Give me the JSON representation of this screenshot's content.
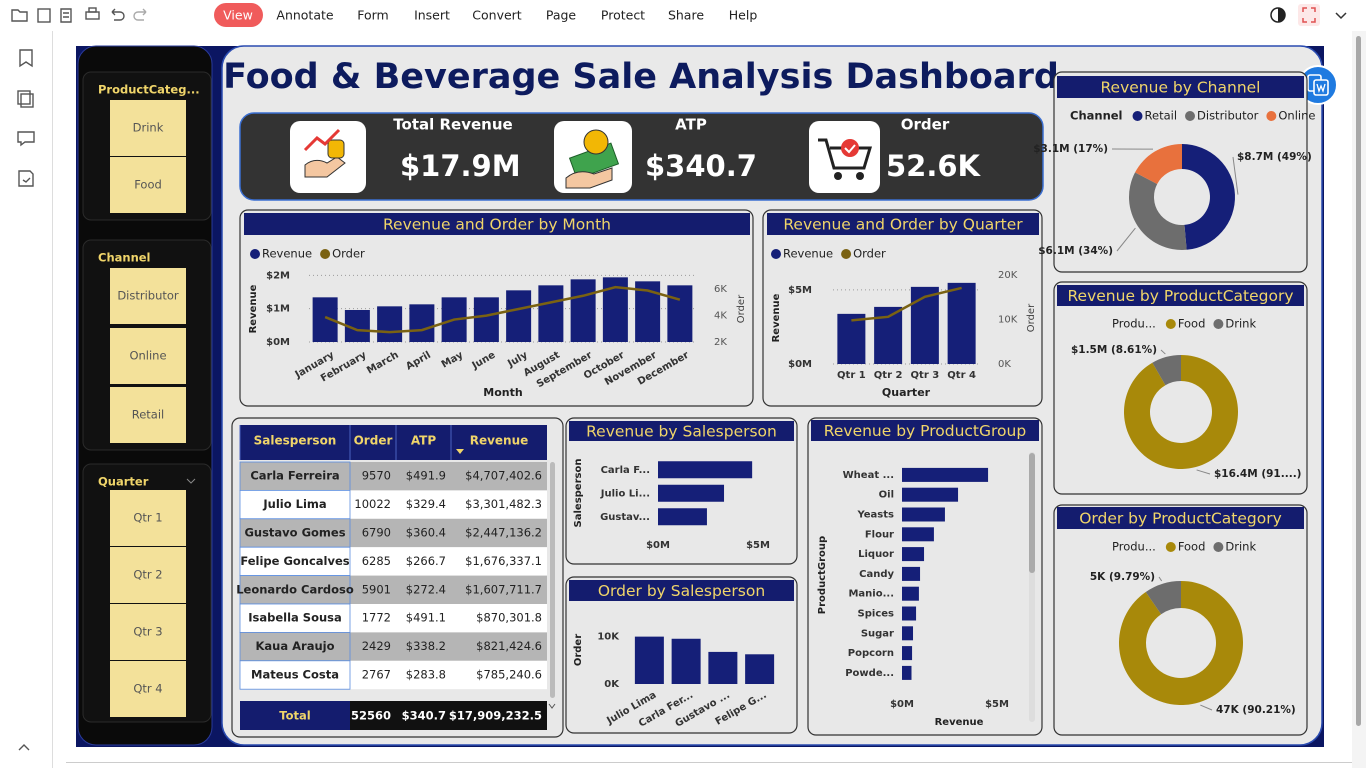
{
  "toolbar": {
    "menu": [
      "View",
      "Annotate",
      "Form",
      "Insert",
      "Convert",
      "Page",
      "Protect",
      "Share",
      "Help"
    ]
  },
  "dashboard": {
    "title": "Food & Beverage Sale Analysis Dashboard",
    "slicers": [
      {
        "title": "ProductCateg...",
        "items": [
          "Drink",
          "Food"
        ]
      },
      {
        "title": "Channel",
        "items": [
          "Distributor",
          "Online",
          "Retail"
        ]
      },
      {
        "title": "Quarter",
        "items": [
          "Qtr 1",
          "Qtr 2",
          "Qtr 3",
          "Qtr 4"
        ]
      }
    ],
    "kpis": [
      {
        "label": "Total Revenue",
        "value": "$17.9M"
      },
      {
        "label": "ATP",
        "value": "$340.7"
      },
      {
        "label": "Order",
        "value": "52.6K"
      }
    ],
    "month_chart": {
      "type": "combo",
      "title": "Revenue and Order by Month",
      "x_label": "Month",
      "y_label": "Revenue",
      "y2_label": "Order",
      "categories": [
        "January",
        "February",
        "March",
        "April",
        "May",
        "June",
        "July",
        "August",
        "September",
        "October",
        "November",
        "December"
      ],
      "series": [
        {
          "name": "Revenue",
          "type": "bar",
          "color": "#151f78",
          "values": [
            1340000,
            960000,
            1070000,
            1130000,
            1340000,
            1340000,
            1550000,
            1700000,
            1880000,
            1940000,
            1820000,
            1700000
          ]
        },
        {
          "name": "Order",
          "type": "line",
          "axis": "y2",
          "color": "#7a6212",
          "values": [
            3890,
            2900,
            2750,
            2900,
            3700,
            4000,
            4500,
            5000,
            5500,
            6150,
            5900,
            5200
          ]
        }
      ],
      "ylim": [
        0,
        2100000
      ],
      "yticks": [
        {
          "value": 0,
          "label": "$0M"
        },
        {
          "value": 1000000,
          "label": "$1M"
        },
        {
          "value": 2000000,
          "label": "$2M"
        }
      ],
      "y2lim": [
        2000,
        7300
      ],
      "y2ticks": [
        {
          "value": 2000,
          "label": "2K"
        },
        {
          "value": 4000,
          "label": "4K"
        },
        {
          "value": 6000,
          "label": "6K"
        }
      ],
      "grid": true
    },
    "quarter_chart": {
      "type": "combo",
      "title": "Revenue and Order by Quarter",
      "x_label": "Quarter",
      "y_label": "Revenue",
      "y2_label": "Order",
      "categories": [
        "Qtr 1",
        "Qtr 2",
        "Qtr 3",
        "Qtr 4"
      ],
      "series": [
        {
          "name": "Revenue",
          "type": "bar",
          "color": "#151f78",
          "values": [
            3380000,
            3850000,
            5200000,
            5470000
          ]
        },
        {
          "name": "Order",
          "type": "line",
          "axis": "y2",
          "color": "#7a6212",
          "values": [
            9800,
            10600,
            15100,
            17100
          ]
        }
      ],
      "ylim": [
        0,
        6000000
      ],
      "yticks": [
        {
          "value": 0,
          "label": "$0M"
        },
        {
          "value": 5000000,
          "label": "$5M"
        }
      ],
      "y2lim": [
        0,
        20000
      ],
      "y2ticks": [
        {
          "value": 0,
          "label": "0K"
        },
        {
          "value": 10000,
          "label": "10K"
        },
        {
          "value": 20000,
          "label": "20K"
        }
      ],
      "grid": true
    },
    "channel_chart": {
      "type": "donut",
      "title": "Revenue by Channel",
      "legend_title": "Channel",
      "categories": [
        "Retail",
        "Distributor",
        "Online"
      ],
      "values": [
        8700000,
        6100000,
        3100000
      ],
      "value_labels": [
        "$8.7M (49%)",
        "$6.1M (34%)",
        "$3.1M (17%)"
      ],
      "colors": [
        "#151f78",
        "#6d6d6d",
        "#e8713d"
      ]
    },
    "category_revenue_chart": {
      "type": "donut",
      "title": "Revenue by ProductCategory",
      "legend_title": "Produ...",
      "categories": [
        "Food",
        "Drink"
      ],
      "values": [
        16400000,
        1500000
      ],
      "value_labels": [
        "$16.4M (91....)",
        "$1.5M (8.61%)"
      ],
      "colors": [
        "#a8890a",
        "#6d6d6d"
      ]
    },
    "category_order_chart": {
      "type": "donut",
      "title": "Order by ProductCategory",
      "legend_title": "Produ...",
      "categories": [
        "Food",
        "Drink"
      ],
      "values": [
        47000,
        5000
      ],
      "value_labels": [
        "47K (90.21%)",
        "5K (9.79%)"
      ],
      "colors": [
        "#a8890a",
        "#6d6d6d"
      ]
    },
    "salesperson_revenue_chart": {
      "type": "hbar",
      "title": "Revenue by Salesperson",
      "y_label": "Salesperson",
      "categories": [
        "Carla F...",
        "Julio Li...",
        "Gustav..."
      ],
      "values": [
        4707402.6,
        3301482.3,
        2447136.2
      ],
      "color": "#151f78",
      "xlim": [
        0,
        5000000
      ],
      "xticks": [
        {
          "value": 0,
          "label": "$0M"
        },
        {
          "value": 5000000,
          "label": "$5M"
        }
      ]
    },
    "salesperson_order_chart": {
      "type": "vbar",
      "title": "Order by Salesperson",
      "y_label": "Order",
      "categories": [
        "Julio Lima",
        "Carla Fer...",
        "Gustavo ...",
        "Felipe G..."
      ],
      "values": [
        10022,
        9570,
        6790,
        6285
      ],
      "color": "#151f78",
      "ylim": [
        0,
        11000
      ],
      "yticks": [
        {
          "value": 0,
          "label": "0K"
        },
        {
          "value": 10000,
          "label": "10K"
        }
      ]
    },
    "product_group_chart": {
      "type": "hbar",
      "title": "Revenue by ProductGroup",
      "x_label": "Revenue",
      "y_label": "ProductGroup",
      "categories": [
        "Wheat ...",
        "Oil",
        "Yeasts",
        "Flour",
        "Liquor",
        "Candy",
        "Manio...",
        "Spices",
        "Sugar",
        "Popcorn",
        "Powde..."
      ],
      "values": [
        4530000,
        2950000,
        2260000,
        1680000,
        1160000,
        950000,
        890000,
        740000,
        580000,
        530000,
        500000
      ],
      "color": "#151f78",
      "xlim": [
        0,
        5000000
      ],
      "xticks": [
        {
          "value": 0,
          "label": "$0M"
        },
        {
          "value": 5000000,
          "label": "$5M"
        }
      ]
    },
    "table": {
      "columns": [
        "Salesperson",
        "Order",
        "ATP",
        "Revenue"
      ],
      "rows": [
        [
          "Carla Ferreira",
          "9570",
          "$491.9",
          "$4,707,402.6"
        ],
        [
          "Julio Lima",
          "10022",
          "$329.4",
          "$3,301,482.3"
        ],
        [
          "Gustavo Gomes",
          "6790",
          "$360.4",
          "$2,447,136.2"
        ],
        [
          "Felipe Goncalves",
          "6285",
          "$266.7",
          "$1,676,337.1"
        ],
        [
          "Leonardo Cardoso",
          "5901",
          "$272.4",
          "$1,607,711.7"
        ],
        [
          "Isabella Sousa",
          "1772",
          "$491.1",
          "$870,301.8"
        ],
        [
          "Kaua Araujo",
          "2429",
          "$338.2",
          "$821,424.6"
        ],
        [
          "Mateus Costa",
          "2767",
          "$283.8",
          "$785,240.6"
        ]
      ],
      "total": [
        "Total",
        "52560",
        "$340.7",
        "$17,909,232.5"
      ]
    }
  }
}
